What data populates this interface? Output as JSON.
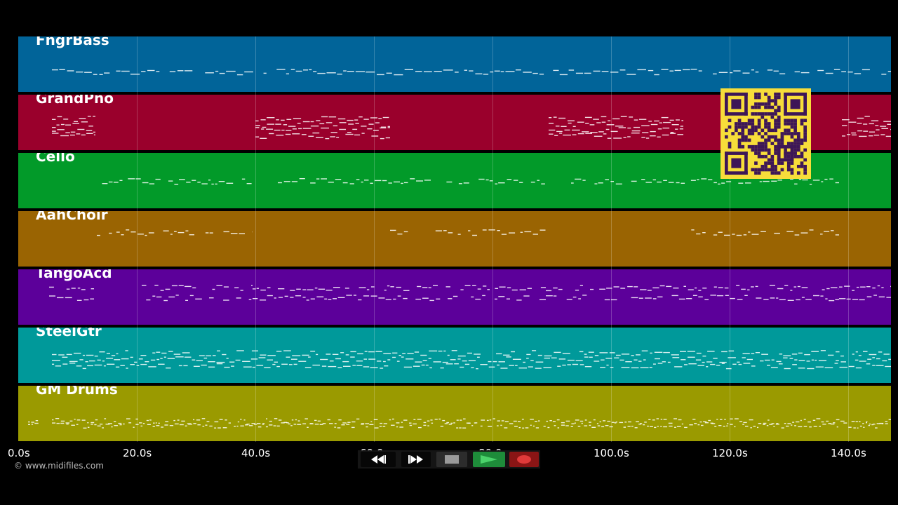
{
  "tracks": [
    {
      "name": "FngrBass",
      "color": "#016499"
    },
    {
      "name": "GrandPno",
      "color": "#9a002c"
    },
    {
      "name": "Cello",
      "color": "#029a29"
    },
    {
      "name": "AahChoir",
      "color": "#9a6402"
    },
    {
      "name": "TangoAcd",
      "color": "#5c009a"
    },
    {
      "name": "SteelGtr",
      "color": "#00999a"
    },
    {
      "name": "GM Drums",
      "color": "#9a9a00"
    }
  ],
  "timeline": {
    "ticks": [
      "0.0s",
      "20.0s",
      "40.0s",
      "60.0s",
      "80.0s",
      "100.0s",
      "120.0s",
      "140.0s"
    ]
  },
  "copyright": "© www.midifiles.com",
  "transport": {
    "rewind_icon": "rewind-icon",
    "fast_forward_icon": "fast-forward-icon",
    "stop_icon": "stop-icon",
    "play_icon": "play-icon",
    "record_icon": "record-icon",
    "play_color": "#1e8c3a",
    "record_color": "#8a1515"
  },
  "qr_code": {
    "color": "#f7dd3a",
    "module_color": "#3d1657"
  }
}
